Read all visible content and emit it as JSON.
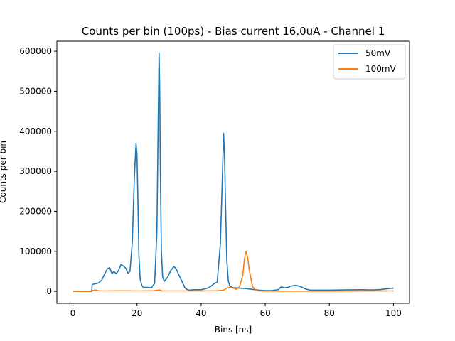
{
  "chart_data": {
    "type": "line",
    "title": "Counts per bin (100ps) - Bias current 16.0uA - Channel 1",
    "xlabel": "Bins [ns]",
    "ylabel": "Counts per bin",
    "xlim": [
      -5,
      105
    ],
    "ylim": [
      -30000,
      625000
    ],
    "xticks": [
      0,
      20,
      40,
      60,
      80,
      100
    ],
    "yticks": [
      0,
      100000,
      200000,
      300000,
      400000,
      500000,
      600000
    ],
    "grid": false,
    "legend_position": "top-right",
    "series": [
      {
        "name": "50mV",
        "color": "#1f77b4",
        "x": [
          0,
          5.9,
          6.0,
          7.0,
          8.0,
          9.0,
          10.0,
          10.8,
          11.5,
          12.2,
          12.8,
          13.5,
          14.2,
          15.0,
          15.8,
          16.5,
          17.2,
          17.8,
          18.5,
          19.2,
          19.7,
          20.0,
          20.3,
          20.6,
          21.0,
          21.5,
          22.0,
          23.0,
          24.5,
          25.5,
          26.2,
          26.6,
          26.9,
          27.1,
          27.3,
          27.6,
          28.0,
          28.5,
          29.5,
          30.5,
          31.5,
          32.3,
          33.0,
          34.0,
          35.0,
          36.0,
          38.0,
          40.0,
          42.0,
          43.0,
          44.0,
          45.0,
          46.0,
          46.6,
          47.0,
          47.3,
          47.6,
          48.0,
          48.5,
          49.0,
          50.0,
          52.0,
          54.0,
          56.0,
          58.0,
          60.0,
          62.0,
          64.0,
          65.0,
          66.0,
          67.0,
          68.0,
          69.5,
          71.0,
          72.5,
          74.0,
          76.0,
          78.0,
          80.0,
          85.0,
          90.0,
          92.0,
          94.0,
          96.0,
          98.0,
          100.0
        ],
        "values": [
          0,
          0,
          17000,
          19000,
          21000,
          28000,
          45000,
          57000,
          59000,
          44000,
          50000,
          44000,
          52000,
          67000,
          63000,
          58000,
          45000,
          50000,
          120000,
          290000,
          370000,
          340000,
          220000,
          90000,
          30000,
          15000,
          10000,
          10000,
          9000,
          20000,
          150000,
          420000,
          595000,
          500000,
          300000,
          100000,
          35000,
          25000,
          35000,
          52000,
          62000,
          55000,
          42000,
          25000,
          8000,
          3000,
          4000,
          4000,
          8000,
          12000,
          19000,
          23000,
          120000,
          280000,
          395000,
          340000,
          220000,
          80000,
          25000,
          12000,
          9000,
          8000,
          7000,
          5000,
          3000,
          2000,
          2000,
          4000,
          11000,
          9000,
          10000,
          13000,
          15000,
          12000,
          6000,
          3000,
          3000,
          3000,
          3000,
          3500,
          4000,
          3500,
          3500,
          4500,
          6500,
          8000
        ]
      },
      {
        "name": "100mV",
        "color": "#ff7f0e",
        "x": [
          0,
          5.0,
          6.0,
          7.0,
          8.0,
          10.0,
          15.0,
          20.0,
          25.0,
          26.5,
          27.0,
          27.5,
          28.0,
          35.0,
          40.0,
          45.0,
          47.0,
          48.0,
          49.0,
          50.0,
          51.0,
          52.0,
          53.0,
          53.5,
          54.0,
          54.5,
          55.0,
          56.0,
          57.0,
          58.0,
          60.0,
          70.0,
          80.0,
          90.0,
          100.0
        ],
        "values": [
          0,
          0,
          2000,
          3500,
          1500,
          1000,
          1500,
          1000,
          1500,
          3000,
          3500,
          2000,
          1000,
          1000,
          1000,
          1500,
          3000,
          8000,
          10000,
          8000,
          5000,
          12000,
          40000,
          80000,
          100000,
          85000,
          55000,
          12000,
          3000,
          1000,
          500,
          500,
          500,
          800,
          1000
        ]
      }
    ]
  }
}
